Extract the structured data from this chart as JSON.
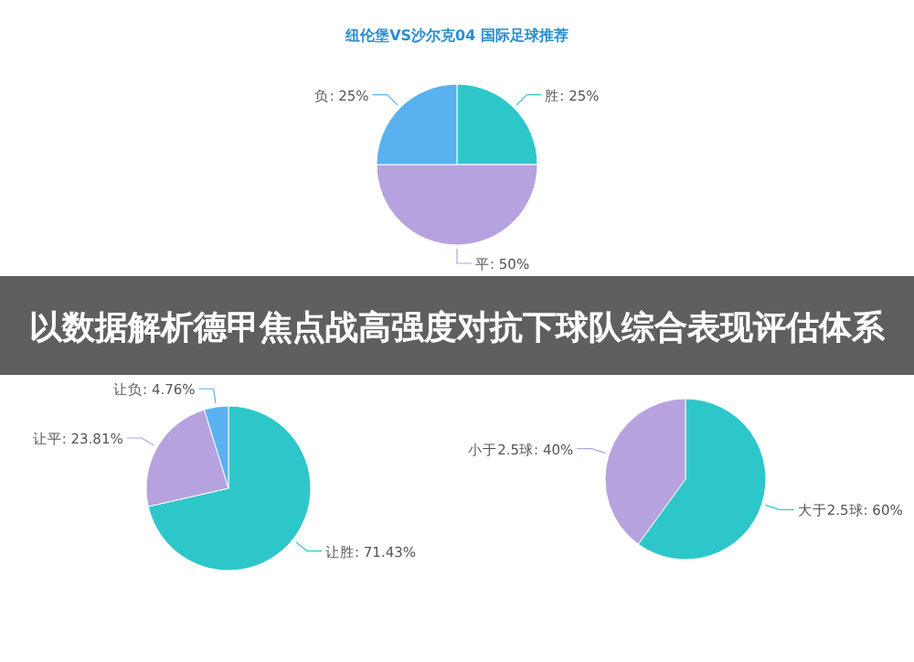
{
  "chart_data": [
    {
      "type": "pie",
      "title": "纽伦堡VS沙尔克04 国际足球推荐",
      "categories": [
        "胜",
        "平",
        "负"
      ],
      "values": [
        25,
        50,
        25
      ],
      "value_labels": [
        "25%",
        "50%",
        "25%"
      ],
      "colors": [
        "#2ec7c9",
        "#b6a2de",
        "#5ab1ef"
      ],
      "annotations": [
        "以数据解析德甲焦点战高强度对抗下球队综合表现评估体系"
      ]
    },
    {
      "type": "pie",
      "categories": [
        "让胜",
        "让平",
        "让负"
      ],
      "values": [
        71.43,
        23.81,
        4.76
      ],
      "value_labels": [
        "71.43%",
        "23.81%",
        "4.76%"
      ],
      "colors": [
        "#2ec7c9",
        "#b6a2de",
        "#5ab1ef"
      ]
    },
    {
      "type": "pie",
      "categories": [
        "大于2.5球",
        "小于2.5球"
      ],
      "values": [
        60,
        40
      ],
      "value_labels": [
        "60%",
        "40%"
      ],
      "colors": [
        "#2ec7c9",
        "#b6a2de"
      ]
    }
  ]
}
